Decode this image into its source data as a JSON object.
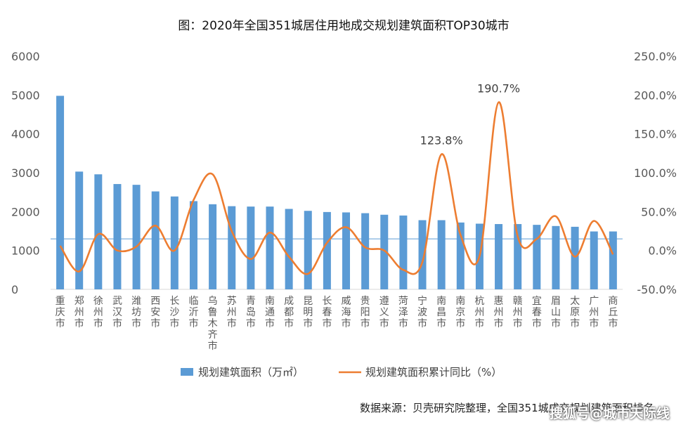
{
  "chart_data": {
    "type": "bar",
    "title": "图：2020年全国351城居住用地成交规划建筑面积TOP30城市",
    "categories": [
      "重庆市",
      "郑州市",
      "徐州市",
      "武汉市",
      "潍坊市",
      "西安市",
      "长沙市",
      "临沂市",
      "乌鲁木齐市",
      "苏州市",
      "青岛市",
      "南通市",
      "成都市",
      "昆明市",
      "长春市",
      "威海市",
      "贵阳市",
      "遵义市",
      "菏泽市",
      "宁波市",
      "南昌市",
      "南京市",
      "杭州市",
      "惠州市",
      "赣州市",
      "宜春市",
      "眉山市",
      "太原市",
      "广州市",
      "商丘市"
    ],
    "series": [
      {
        "name": "规划建筑面积（万㎡）",
        "type": "bar",
        "axis": "left",
        "color": "#5B9BD5",
        "values": [
          4980,
          3030,
          2960,
          2710,
          2690,
          2520,
          2390,
          2270,
          2190,
          2140,
          2130,
          2130,
          2070,
          2020,
          1990,
          1980,
          1960,
          1920,
          1900,
          1780,
          1780,
          1720,
          1690,
          1680,
          1680,
          1660,
          1630,
          1610,
          1490,
          1490
        ]
      },
      {
        "name": "规划建筑面积累计同比（%）",
        "type": "line",
        "axis": "right",
        "color": "#ED7D31",
        "values": [
          6,
          -27,
          21,
          0,
          5,
          32,
          0,
          65,
          98,
          25,
          -11,
          23,
          -8,
          -30,
          10,
          30,
          4,
          0,
          -25,
          -15,
          123.8,
          20,
          -7,
          190.7,
          18,
          15,
          44,
          -8,
          38,
          -5
        ]
      }
    ],
    "ylim_left": [
      0,
      6000
    ],
    "yticks_left": [
      "0",
      "1000",
      "2000",
      "3000",
      "4000",
      "5000",
      "6000"
    ],
    "ylim_right": [
      -50,
      250
    ],
    "yticks_right": [
      "-50.0%",
      "0.0%",
      "50.0%",
      "100.0%",
      "150.0%",
      "200.0%",
      "250.0%"
    ],
    "annotations": [
      {
        "text": "123.8%",
        "category": "南昌市",
        "series": 1
      },
      {
        "text": "190.7%",
        "category": "惠州市",
        "series": 1
      }
    ],
    "reference_line": {
      "axis": "left",
      "value": 1300,
      "color": "#5B9BD5"
    },
    "legend_position": "bottom",
    "grid": false
  },
  "footer": {
    "source": "数据来源：贝壳研究院整理，全国351城成交规划建筑面积排名",
    "watermark": "搜狐号@城市天际线"
  }
}
